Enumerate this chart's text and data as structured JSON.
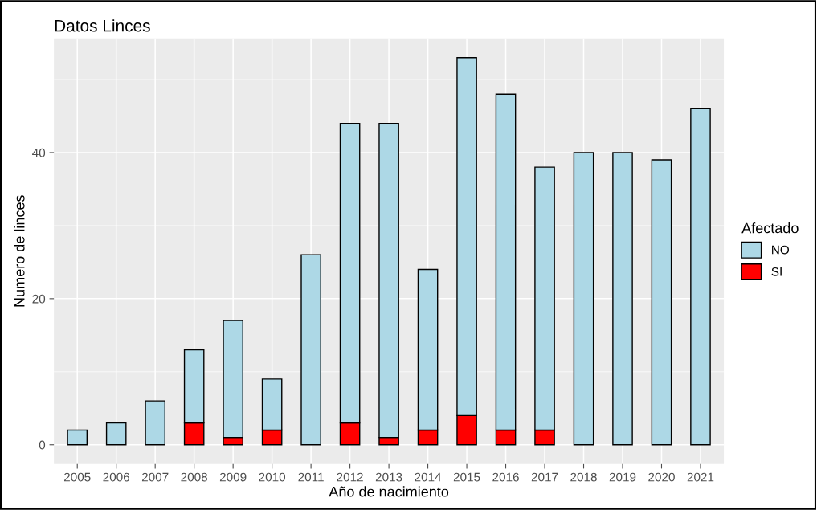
{
  "chart_data": {
    "type": "bar",
    "title": "Datos Linces",
    "xlabel": "Año de nacimiento",
    "ylabel": "Numero de linces",
    "legend_title": "Afectado",
    "categories": [
      "2005",
      "2006",
      "2007",
      "2008",
      "2009",
      "2010",
      "2011",
      "2012",
      "2013",
      "2014",
      "2015",
      "2016",
      "2017",
      "2018",
      "2019",
      "2020",
      "2021"
    ],
    "stacked": true,
    "series": [
      {
        "name": "SI",
        "color": "#ff0000",
        "values": [
          0,
          0,
          0,
          3,
          1,
          2,
          0,
          3,
          1,
          2,
          4,
          2,
          2,
          0,
          0,
          0,
          0
        ]
      },
      {
        "name": "NO",
        "color": "#add8e6",
        "values": [
          2,
          3,
          6,
          10,
          16,
          7,
          26,
          41,
          43,
          22,
          49,
          46,
          36,
          40,
          40,
          39,
          46
        ]
      }
    ],
    "ylim": [
      -2.65,
      55.65
    ],
    "yticks": [
      0,
      20,
      40
    ],
    "grid": true,
    "legend": "right"
  }
}
